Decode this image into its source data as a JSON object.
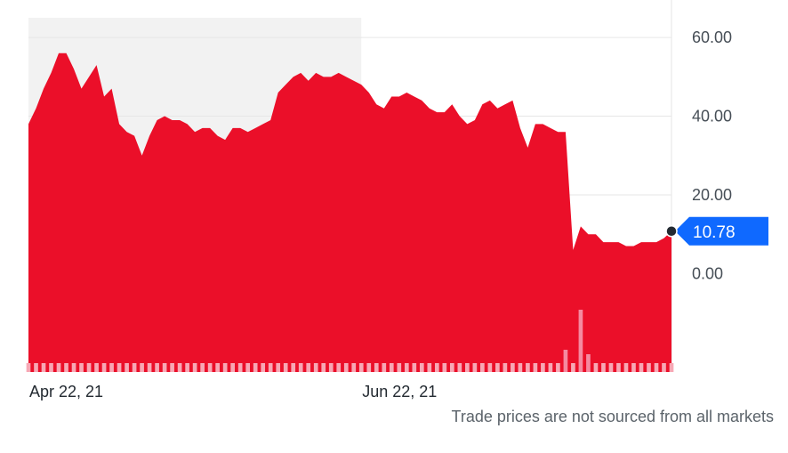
{
  "chart_data": {
    "type": "area",
    "series": [
      {
        "values": [
          38,
          42,
          47,
          51,
          56,
          56,
          52,
          47,
          50,
          53,
          45,
          47,
          38,
          36,
          35,
          30,
          35,
          39,
          40,
          39,
          39,
          38,
          36,
          37,
          37,
          35,
          34,
          37,
          37,
          36,
          37,
          38,
          39,
          46,
          48,
          50,
          51,
          49,
          51,
          50,
          50,
          51,
          50,
          49,
          48,
          46,
          43,
          42,
          45,
          45,
          46,
          45,
          44,
          42,
          41,
          41,
          43,
          40,
          38,
          39,
          43,
          44,
          42,
          43,
          44,
          37,
          32,
          38,
          38,
          37,
          36,
          36,
          6,
          12,
          10,
          10,
          8,
          8,
          8,
          7,
          7,
          8,
          8,
          8,
          9,
          10.78
        ]
      }
    ],
    "volume": [
      2,
      2,
      2,
      2,
      2,
      2,
      2,
      2,
      2,
      2,
      2,
      2,
      2,
      2,
      2,
      2,
      2,
      2,
      2,
      2,
      2,
      2,
      2,
      2,
      2,
      2,
      2,
      2,
      2,
      2,
      2,
      2,
      2,
      2,
      2,
      2,
      2,
      2,
      2,
      2,
      2,
      2,
      2,
      2,
      2,
      2,
      2,
      2,
      2,
      2,
      2,
      2,
      2,
      2,
      2,
      2,
      2,
      2,
      2,
      2,
      2,
      2,
      2,
      2,
      2,
      2,
      2,
      2,
      2,
      2,
      2,
      5,
      2,
      14,
      4,
      2,
      2,
      2,
      2,
      2,
      2,
      2,
      2,
      2,
      2,
      2
    ],
    "x_tick_labels": [
      "Apr 22, 21",
      "Jun 22, 21"
    ],
    "x_tick_index": [
      0,
      44
    ],
    "y_tick_labels": [
      "60.00",
      "40.00",
      "20.00",
      "0.00"
    ],
    "y_tick_values": [
      60,
      40,
      20,
      0
    ],
    "ylim": [
      -25,
      65
    ],
    "last_price_label": "10.78",
    "last_price": 10.78,
    "shaded_period_end_index": 44,
    "grid": true,
    "colors": {
      "area": "#eb0f29",
      "volume": "#f7a8b5",
      "volume_highlight": "#f58aa0",
      "shaded_band": "#f2f2f2",
      "gridline": "#e6e6e6",
      "price_tag": "#0f69ff",
      "price_tag_text": "#ffffff",
      "marker": "#232a31"
    }
  },
  "footnote": "Trade prices are not sourced from all markets"
}
